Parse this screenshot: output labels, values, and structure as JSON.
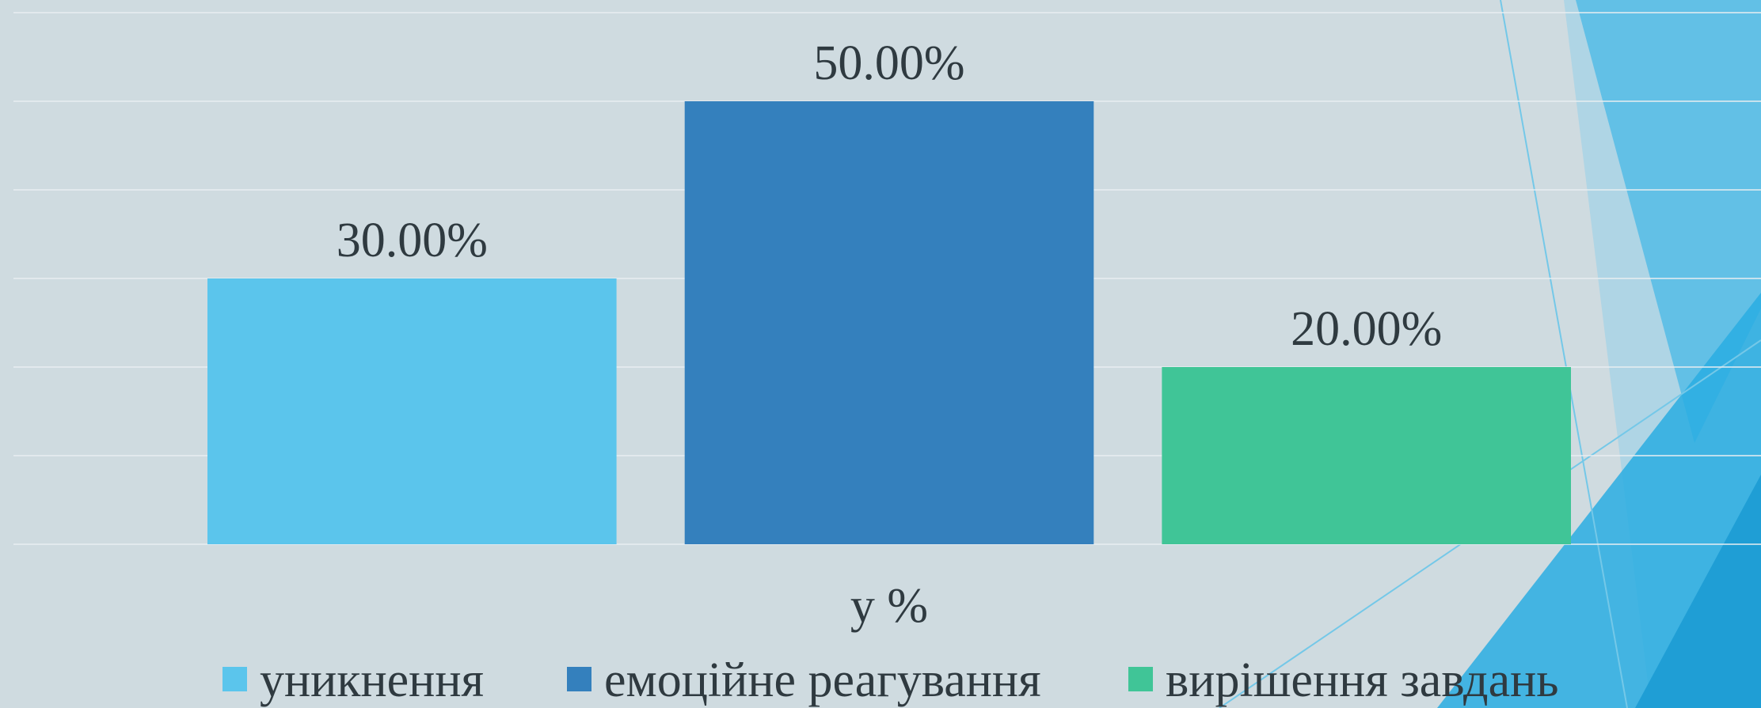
{
  "chart_data": {
    "type": "bar",
    "categories": [
      "у %"
    ],
    "series": [
      {
        "name": "уникнення",
        "color": "#5bc5ec",
        "values": [
          30
        ],
        "value_labels": [
          "30.00%"
        ]
      },
      {
        "name": "емоційне реагування",
        "color": "#3480bd",
        "values": [
          50
        ],
        "value_labels": [
          "50.00%"
        ]
      },
      {
        "name": "вирішення завдань",
        "color": "#40c597",
        "values": [
          20
        ],
        "value_labels": [
          "20.00%"
        ]
      }
    ],
    "ylim": [
      0,
      60
    ],
    "yticks": [
      0,
      10,
      20,
      30,
      40,
      50,
      60
    ],
    "grid": true,
    "legend": "bottom"
  }
}
